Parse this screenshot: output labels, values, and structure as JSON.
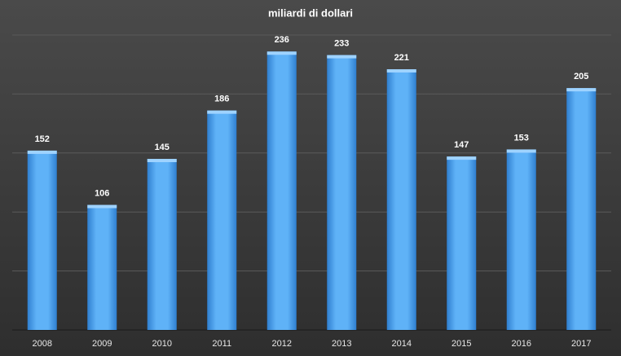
{
  "chart_data": {
    "type": "bar",
    "title": "miliardi di dollari",
    "categories": [
      "2008",
      "2009",
      "2010",
      "2011",
      "2012",
      "2013",
      "2014",
      "2015",
      "2016",
      "2017"
    ],
    "values": [
      152,
      106,
      145,
      186,
      236,
      233,
      221,
      147,
      153,
      205
    ],
    "color": "#4aa3f0",
    "ylim": [
      0,
      250
    ],
    "yticks": [
      0,
      50,
      100,
      150,
      200,
      250
    ],
    "grid": true
  }
}
